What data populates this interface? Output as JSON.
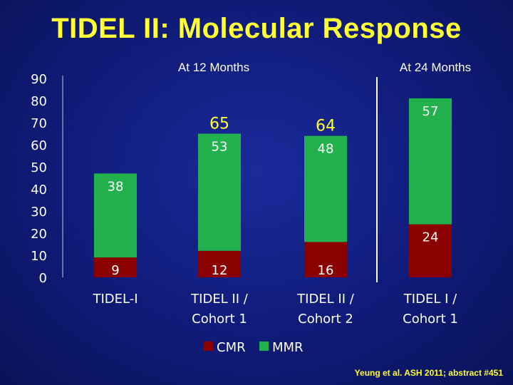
{
  "title": "TIDEL II: Molecular Response",
  "citation": "Yeung et al. ASH 2011; abstract #451",
  "chart_data": {
    "type": "bar",
    "stacked": true,
    "categories": [
      [
        "TIDEL-I"
      ],
      [
        "TIDEL II /",
        "Cohort 1"
      ],
      [
        "TIDEL II /",
        "Cohort 2"
      ],
      [
        "TIDEL I /",
        "Cohort 1"
      ]
    ],
    "series": [
      {
        "name": "CMR",
        "color": "#8b0000",
        "values": [
          9,
          12,
          16,
          24
        ]
      },
      {
        "name": "MMR",
        "color": "#22b14c",
        "values": [
          38,
          53,
          48,
          57
        ]
      }
    ],
    "top_labels": [
      "",
      "65",
      "64",
      ""
    ],
    "group_labels": [
      "At 12 Months",
      "At 24 Months"
    ],
    "yticks": [
      0,
      10,
      20,
      30,
      40,
      50,
      60,
      70,
      80,
      90
    ],
    "ylim": [
      0,
      90
    ],
    "legend": [
      "CMR",
      "MMR"
    ],
    "colors": {
      "text": "#ffffff",
      "title": "#ffff33",
      "cmr": "#8b0000",
      "mmr": "#22b14c"
    }
  }
}
